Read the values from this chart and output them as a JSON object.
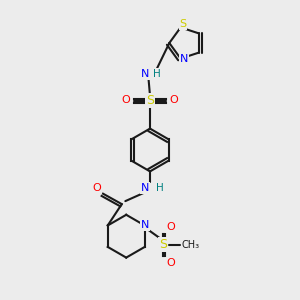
{
  "bg_color": "#ececec",
  "bond_color": "#1a1a1a",
  "colors": {
    "C": "#1a1a1a",
    "N": "#0000ff",
    "O": "#ff0000",
    "S": "#cccc00",
    "H": "#008080"
  }
}
